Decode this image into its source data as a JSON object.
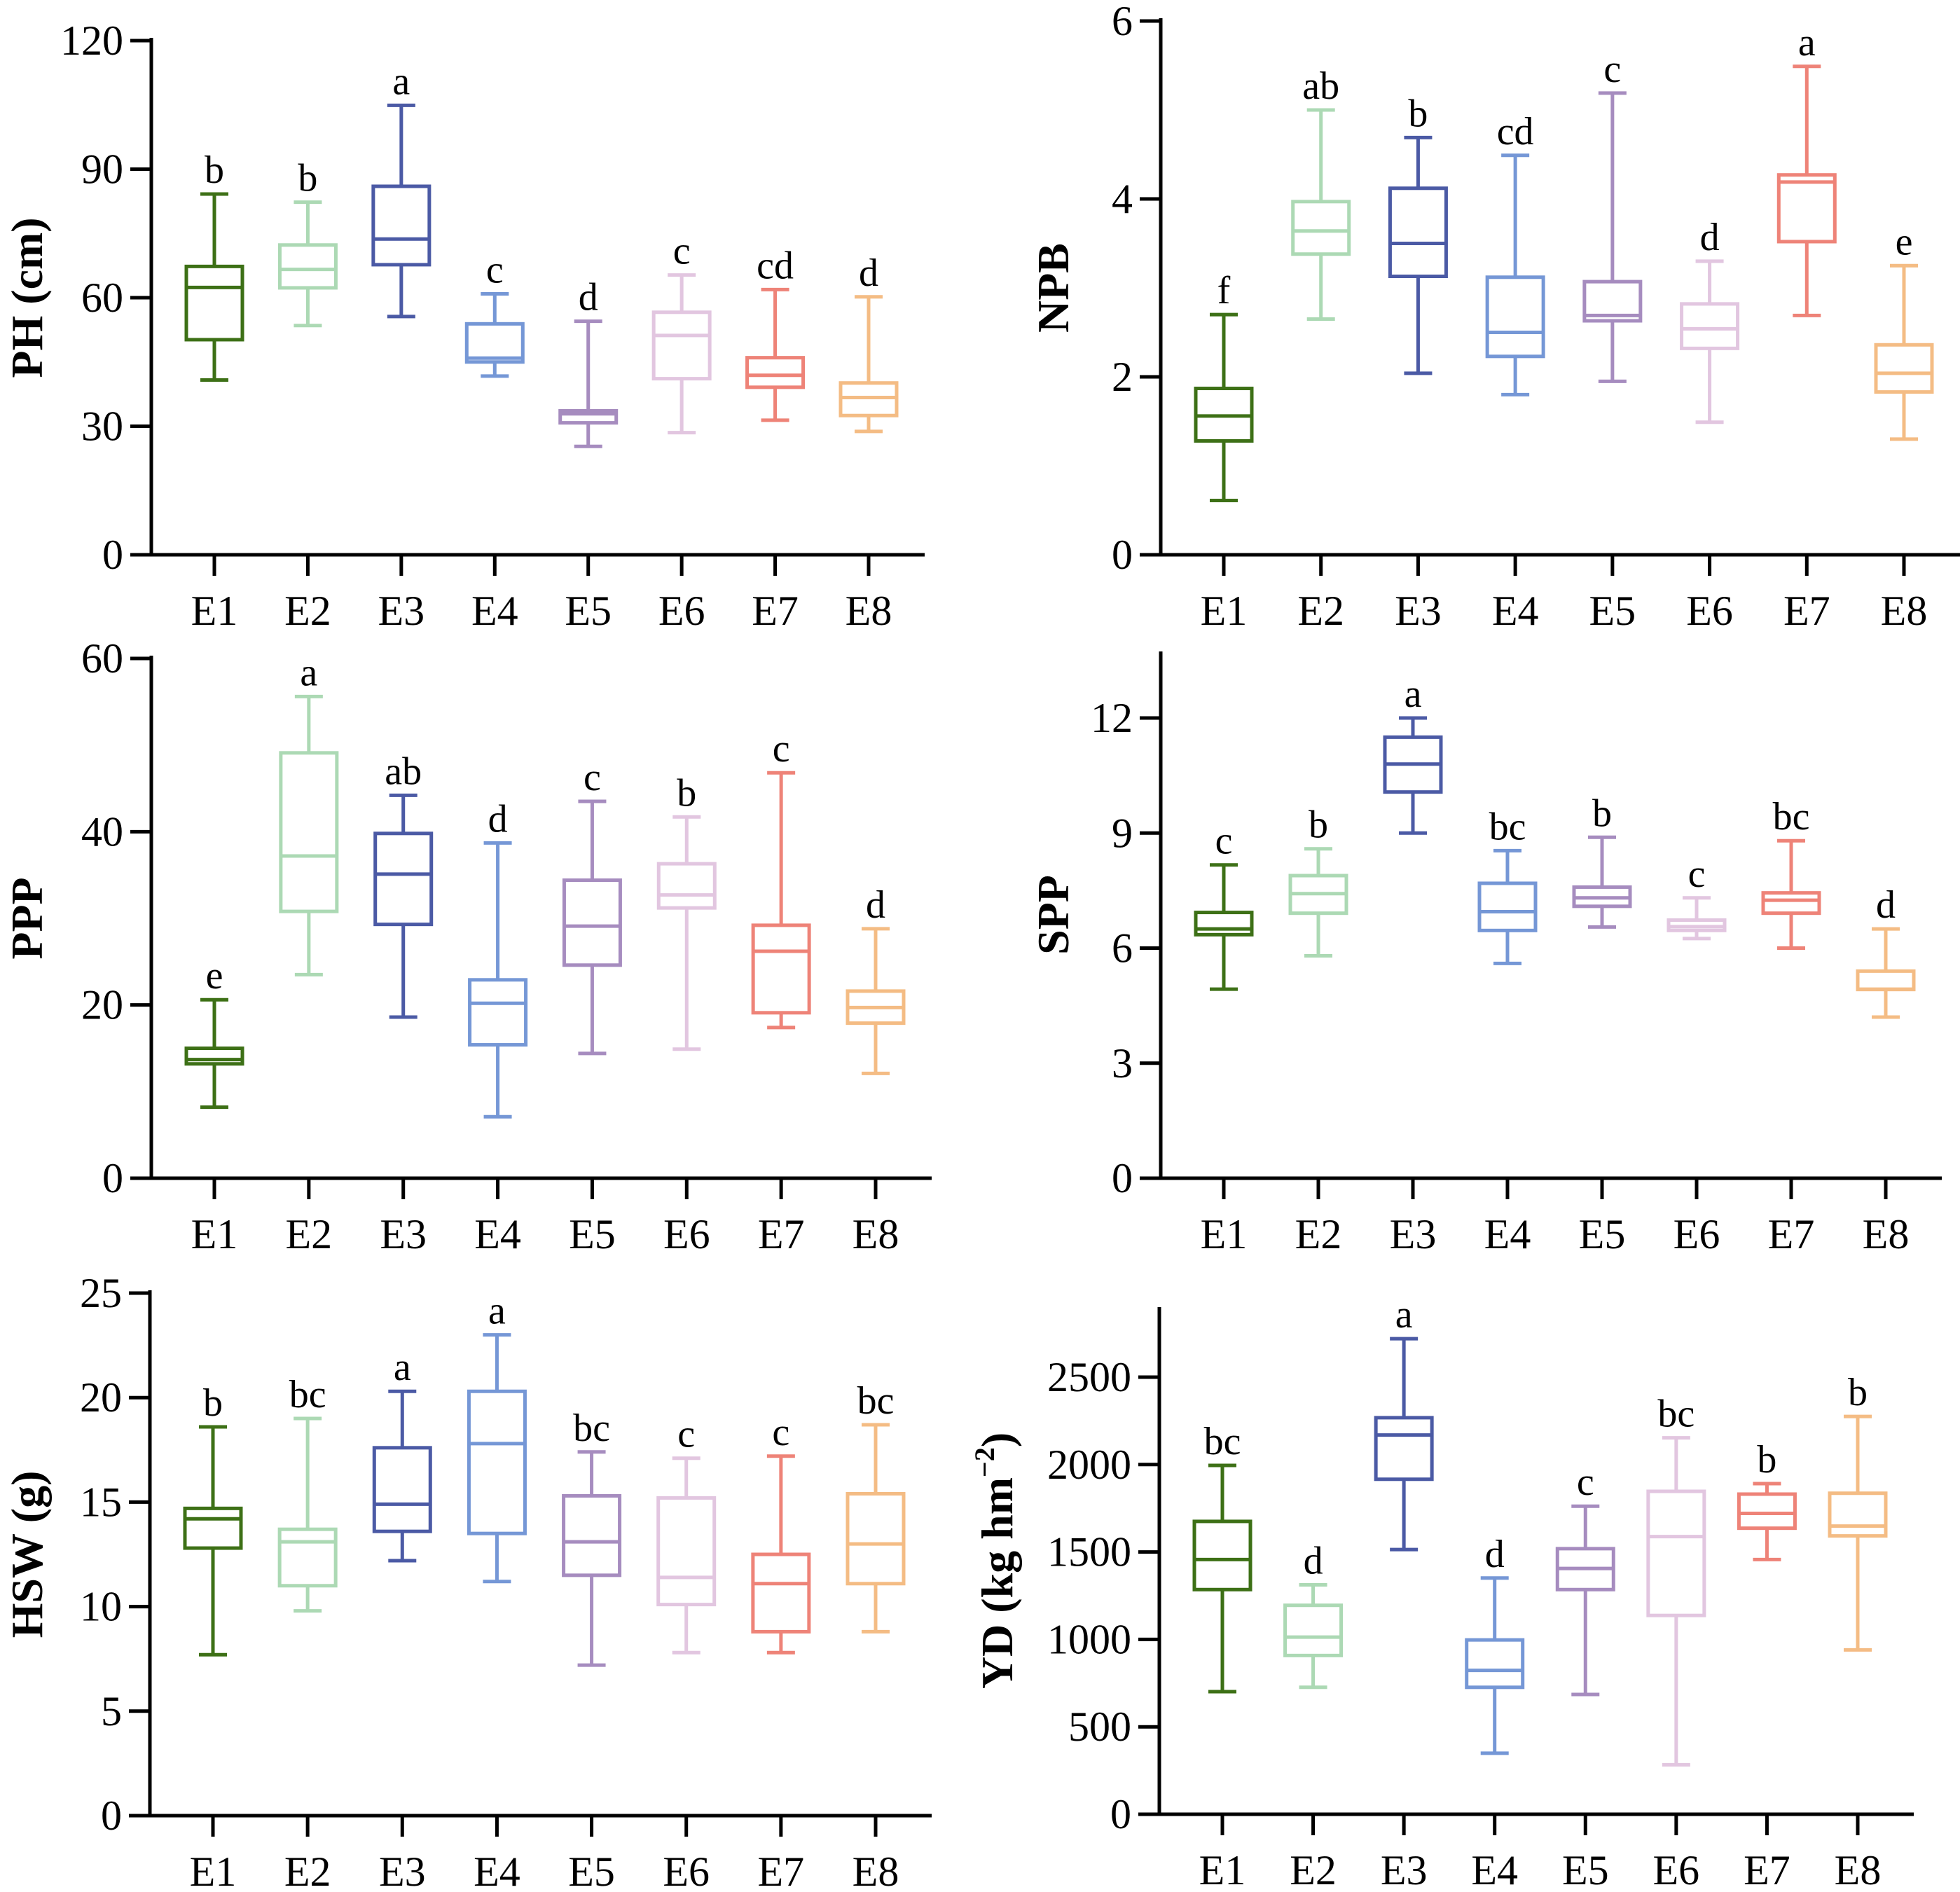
{
  "figure": {
    "categories": [
      "E1",
      "E2",
      "E3",
      "E4",
      "E5",
      "E6",
      "E7",
      "E8"
    ],
    "colors": [
      "#3d7016",
      "#acd9b4",
      "#4b5aa5",
      "#7597d6",
      "#a68cbf",
      "#e2c6e0",
      "#ee8378",
      "#f4bc84"
    ]
  },
  "chart_data": [
    {
      "type": "box",
      "title": "",
      "ylabel": "PH (cm)",
      "ylabel_sup": "",
      "xlabel": "",
      "ylim": [
        0,
        120
      ],
      "yticks": [
        0,
        30,
        60,
        90,
        120
      ],
      "categories": [
        "E1",
        "E2",
        "E3",
        "E4",
        "E5",
        "E6",
        "E7",
        "E8"
      ],
      "boxes": [
        {
          "min": 40.8,
          "q1": 50.2,
          "median": 62.4,
          "q3": 67.3,
          "max": 84.2,
          "label": "b"
        },
        {
          "min": 53.5,
          "q1": 62.3,
          "median": 66.6,
          "q3": 72.3,
          "max": 82.3,
          "label": "b"
        },
        {
          "min": 55.6,
          "q1": 67.7,
          "median": 73.7,
          "q3": 86.0,
          "max": 104.9,
          "label": "a"
        },
        {
          "min": 41.7,
          "q1": 45.0,
          "median": 45.9,
          "q3": 53.9,
          "max": 60.9,
          "label": "c"
        },
        {
          "min": 25.3,
          "q1": 30.8,
          "median": 32.9,
          "q3": 33.6,
          "max": 54.5,
          "label": "d"
        },
        {
          "min": 28.5,
          "q1": 41.1,
          "median": 51.2,
          "q3": 56.6,
          "max": 65.3,
          "label": "c"
        },
        {
          "min": 31.4,
          "q1": 39.1,
          "median": 41.9,
          "q3": 46.0,
          "max": 61.9,
          "label": "cd"
        },
        {
          "min": 28.8,
          "q1": 32.5,
          "median": 36.7,
          "q3": 40.1,
          "max": 60.2,
          "label": "d"
        }
      ]
    },
    {
      "type": "box",
      "title": "",
      "ylabel": "NPB",
      "ylabel_sup": "",
      "xlabel": "",
      "ylim": [
        0,
        6
      ],
      "yticks": [
        0,
        2,
        4,
        6
      ],
      "categories": [
        "E1",
        "E2",
        "E3",
        "E4",
        "E5",
        "E6",
        "E7",
        "E8"
      ],
      "boxes": [
        {
          "min": 0.61,
          "q1": 1.28,
          "median": 1.56,
          "q3": 1.87,
          "max": 2.7,
          "label": "f"
        },
        {
          "min": 2.65,
          "q1": 3.38,
          "median": 3.64,
          "q3": 3.97,
          "max": 5.0,
          "label": "ab"
        },
        {
          "min": 2.04,
          "q1": 3.13,
          "median": 3.5,
          "q3": 4.12,
          "max": 4.69,
          "label": "b"
        },
        {
          "min": 1.8,
          "q1": 2.23,
          "median": 2.5,
          "q3": 3.12,
          "max": 4.49,
          "label": "cd"
        },
        {
          "min": 1.95,
          "q1": 2.63,
          "median": 2.69,
          "q3": 3.07,
          "max": 5.19,
          "label": "c"
        },
        {
          "min": 1.49,
          "q1": 2.32,
          "median": 2.54,
          "q3": 2.82,
          "max": 3.3,
          "label": "d"
        },
        {
          "min": 2.69,
          "q1": 3.52,
          "median": 4.19,
          "q3": 4.27,
          "max": 5.49,
          "label": "a"
        },
        {
          "min": 1.3,
          "q1": 1.83,
          "median": 2.04,
          "q3": 2.36,
          "max": 3.25,
          "label": "e"
        }
      ]
    },
    {
      "type": "box",
      "title": "",
      "ylabel": "PPP",
      "ylabel_sup": "",
      "xlabel": "",
      "ylim": [
        0,
        60
      ],
      "yticks": [
        0,
        20,
        40,
        60
      ],
      "categories": [
        "E1",
        "E2",
        "E3",
        "E4",
        "E5",
        "E6",
        "E7",
        "E8"
      ],
      "boxes": [
        {
          "min": 8.2,
          "q1": 13.2,
          "median": 13.7,
          "q3": 15.0,
          "max": 20.6,
          "label": "e"
        },
        {
          "min": 23.5,
          "q1": 30.8,
          "median": 37.2,
          "q3": 49.1,
          "max": 55.6,
          "label": "a"
        },
        {
          "min": 18.6,
          "q1": 29.3,
          "median": 35.1,
          "q3": 39.8,
          "max": 44.2,
          "label": "ab"
        },
        {
          "min": 7.1,
          "q1": 15.4,
          "median": 20.2,
          "q3": 22.9,
          "max": 38.7,
          "label": "d"
        },
        {
          "min": 14.4,
          "q1": 24.6,
          "median": 29.1,
          "q3": 34.4,
          "max": 43.5,
          "label": "c"
        },
        {
          "min": 14.9,
          "q1": 31.2,
          "median": 32.7,
          "q3": 36.3,
          "max": 41.7,
          "label": "b"
        },
        {
          "min": 17.4,
          "q1": 19.1,
          "median": 26.2,
          "q3": 29.2,
          "max": 46.8,
          "label": "c"
        },
        {
          "min": 12.1,
          "q1": 17.9,
          "median": 19.7,
          "q3": 21.6,
          "max": 28.8,
          "label": "d"
        }
      ]
    },
    {
      "type": "box",
      "title": "",
      "ylabel": "SPP",
      "ylabel_sup": "",
      "xlabel": "",
      "ylim": [
        0,
        13
      ],
      "yticks": [
        0,
        3,
        6,
        9,
        12
      ],
      "categories": [
        "E1",
        "E2",
        "E3",
        "E4",
        "E5",
        "E6",
        "E7",
        "E8"
      ],
      "boxes": [
        {
          "min": 4.93,
          "q1": 6.35,
          "median": 6.5,
          "q3": 6.93,
          "max": 8.17,
          "label": "c"
        },
        {
          "min": 5.8,
          "q1": 6.91,
          "median": 7.42,
          "q3": 7.89,
          "max": 8.59,
          "label": "b"
        },
        {
          "min": 9.0,
          "q1": 10.07,
          "median": 10.8,
          "q3": 11.5,
          "max": 12.0,
          "label": "a"
        },
        {
          "min": 5.6,
          "q1": 6.46,
          "median": 6.95,
          "q3": 7.69,
          "max": 8.54,
          "label": "bc"
        },
        {
          "min": 6.55,
          "q1": 7.09,
          "median": 7.31,
          "q3": 7.59,
          "max": 8.89,
          "label": "b"
        },
        {
          "min": 6.25,
          "q1": 6.46,
          "median": 6.56,
          "q3": 6.73,
          "max": 7.31,
          "label": "c"
        },
        {
          "min": 6.0,
          "q1": 6.91,
          "median": 7.25,
          "q3": 7.44,
          "max": 8.8,
          "label": "bc"
        },
        {
          "min": 4.2,
          "q1": 4.92,
          "median": 4.93,
          "q3": 5.4,
          "max": 6.5,
          "label": "d"
        }
      ]
    },
    {
      "type": "box",
      "title": "",
      "ylabel": "HSW (g)",
      "ylabel_sup": "",
      "xlabel": "",
      "ylim": [
        0,
        25
      ],
      "yticks": [
        0,
        5,
        10,
        15,
        20,
        25
      ],
      "categories": [
        "E1",
        "E2",
        "E3",
        "E4",
        "E5",
        "E6",
        "E7",
        "E8"
      ],
      "boxes": [
        {
          "min": 7.7,
          "q1": 12.8,
          "median": 14.2,
          "q3": 14.7,
          "max": 18.6,
          "label": "b"
        },
        {
          "min": 9.8,
          "q1": 11.0,
          "median": 13.1,
          "q3": 13.7,
          "max": 19.0,
          "label": "bc"
        },
        {
          "min": 12.2,
          "q1": 13.6,
          "median": 14.9,
          "q3": 17.6,
          "max": 20.3,
          "label": "a"
        },
        {
          "min": 11.2,
          "q1": 13.5,
          "median": 17.8,
          "q3": 20.3,
          "max": 23.0,
          "label": "a"
        },
        {
          "min": 7.2,
          "q1": 11.5,
          "median": 13.1,
          "q3": 15.3,
          "max": 17.4,
          "label": "bc"
        },
        {
          "min": 7.8,
          "q1": 10.1,
          "median": 11.4,
          "q3": 15.2,
          "max": 17.1,
          "label": "c"
        },
        {
          "min": 7.8,
          "q1": 8.8,
          "median": 11.1,
          "q3": 12.5,
          "max": 17.2,
          "label": "c"
        },
        {
          "min": 8.8,
          "q1": 11.1,
          "median": 13.0,
          "q3": 15.4,
          "max": 18.7,
          "label": "bc"
        }
      ]
    },
    {
      "type": "box",
      "title": "",
      "ylabel": "YD (kg hm",
      "ylabel_sup": "−2",
      "ylabel_end": ")",
      "xlabel": "",
      "ylim": [
        0,
        2800
      ],
      "yticks": [
        0,
        500,
        1000,
        1500,
        2000,
        2500
      ],
      "categories": [
        "E1",
        "E2",
        "E3",
        "E4",
        "E5",
        "E6",
        "E7",
        "E8"
      ],
      "boxes": [
        {
          "min": 701,
          "q1": 1285,
          "median": 1457,
          "q3": 1675,
          "max": 1995,
          "label": "bc"
        },
        {
          "min": 726,
          "q1": 908,
          "median": 1013,
          "q3": 1195,
          "max": 1312,
          "label": "d"
        },
        {
          "min": 1514,
          "q1": 1916,
          "median": 2169,
          "q3": 2268,
          "max": 2720,
          "label": "a"
        },
        {
          "min": 349,
          "q1": 726,
          "median": 823,
          "q3": 997,
          "max": 1351,
          "label": "d"
        },
        {
          "min": 685,
          "q1": 1285,
          "median": 1406,
          "q3": 1519,
          "max": 1762,
          "label": "c"
        },
        {
          "min": 283,
          "q1": 1137,
          "median": 1588,
          "q3": 1847,
          "max": 2153,
          "label": "bc"
        },
        {
          "min": 1457,
          "q1": 1636,
          "median": 1721,
          "q3": 1831,
          "max": 1891,
          "label": "b"
        },
        {
          "min": 940,
          "q1": 1592,
          "median": 1648,
          "q3": 1836,
          "max": 2275,
          "label": "b"
        }
      ]
    }
  ]
}
